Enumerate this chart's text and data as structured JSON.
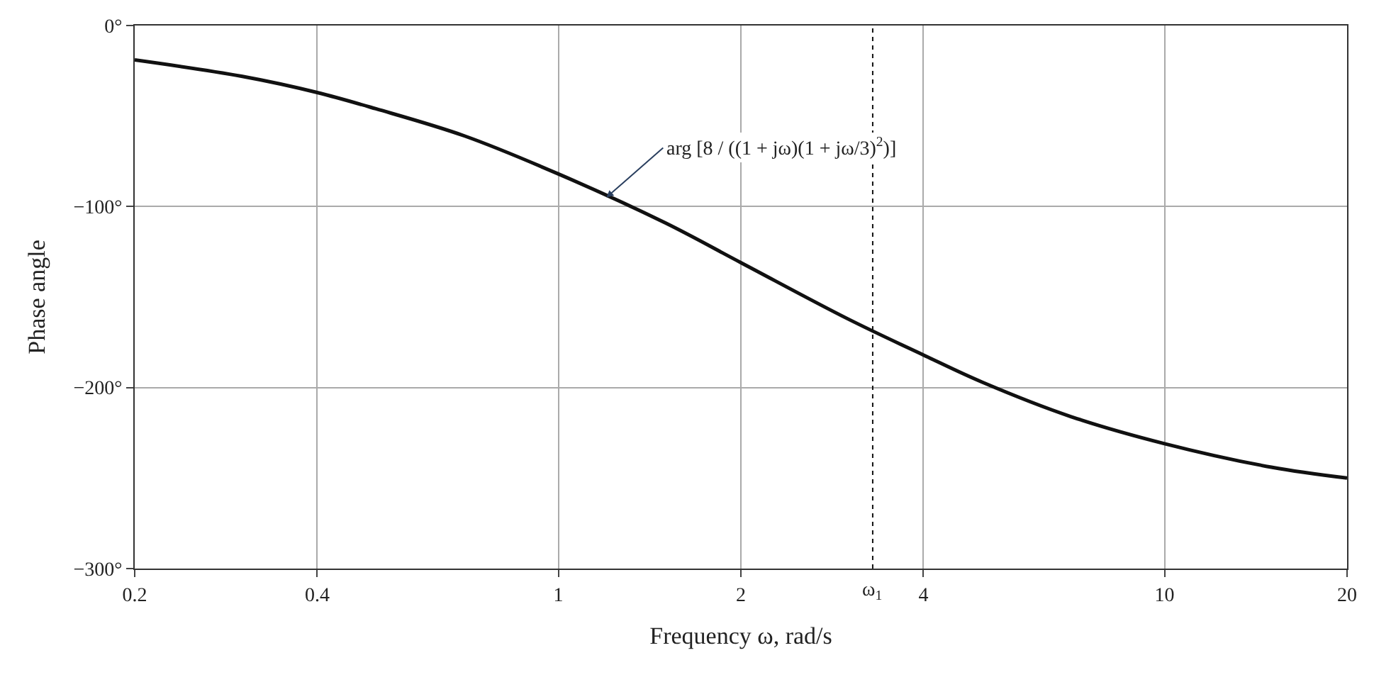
{
  "chart_data": {
    "type": "line",
    "xlabel": "Frequency ω, rad/s",
    "ylabel": "Phase angle",
    "x": [
      0.2,
      0.3,
      0.4,
      0.5,
      0.7,
      1,
      1.5,
      2,
      3,
      4,
      5,
      7,
      10,
      15,
      20
    ],
    "series": [
      {
        "color": "#111111",
        "values": [
          -19,
          -28,
          -37,
          -46,
          -61,
          -82,
          -109,
          -131,
          -162,
          -182,
          -197,
          -216,
          -231,
          -244,
          -250
        ]
      }
    ],
    "log": "x",
    "xlim": [
      0.2,
      20
    ],
    "xticks": [
      0.2,
      0.4,
      1,
      2,
      4,
      10,
      20
    ],
    "ylim": [
      -300,
      0
    ],
    "yticks": [
      {
        "value": 0,
        "label": "0°"
      },
      {
        "value": -100,
        "label": "−100°"
      },
      {
        "value": -200,
        "label": "−200°"
      },
      {
        "value": -300,
        "label": "−300°"
      }
    ],
    "grid": true,
    "legend": false,
    "marker": "none",
    "line_style": "solid",
    "ref_lines": [
      {
        "axis": "x",
        "value": 3.3,
        "label": "ω$_{1}$",
        "color": "#111111",
        "line_style": "dotted"
      }
    ],
    "annotations": [
      {
        "text": "arg [8 / ((1 + jω)(1 + jω/3)$^{2}$)]",
        "x": 1.2,
        "y": -95
      }
    ]
  }
}
